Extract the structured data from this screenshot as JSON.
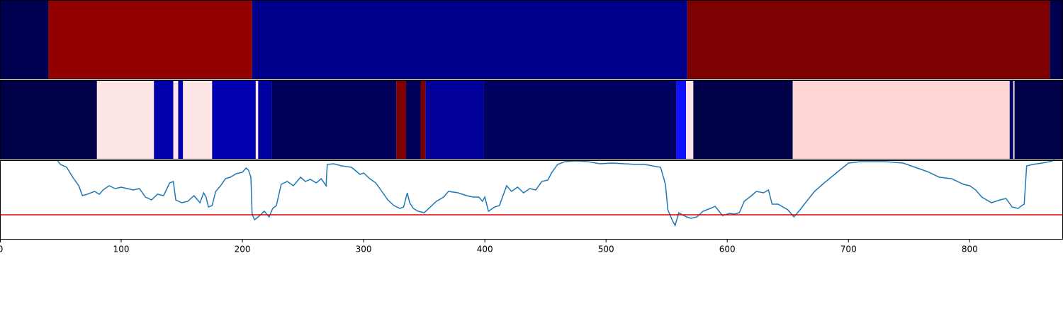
{
  "chart_data": [
    {
      "type": "segments",
      "xlim": [
        0,
        877
      ],
      "segments": [
        {
          "start": 0,
          "end": 40,
          "color": "#000050"
        },
        {
          "start": 40,
          "end": 208,
          "color": "#930000"
        },
        {
          "start": 208,
          "end": 567,
          "color": "#00008a"
        },
        {
          "start": 567,
          "end": 866,
          "color": "#7f0000"
        },
        {
          "start": 866,
          "end": 877,
          "color": "#000050"
        }
      ]
    },
    {
      "type": "segments",
      "xlim": [
        0,
        877
      ],
      "segments": [
        {
          "start": 0,
          "end": 80,
          "color": "#000048"
        },
        {
          "start": 80,
          "end": 127,
          "color": "#ffe6e6"
        },
        {
          "start": 127,
          "end": 143,
          "color": "#0000aa"
        },
        {
          "start": 143,
          "end": 147,
          "color": "#ffe6e6"
        },
        {
          "start": 147,
          "end": 151,
          "color": "#0000aa"
        },
        {
          "start": 151,
          "end": 175,
          "color": "#ffe6e6"
        },
        {
          "start": 175,
          "end": 211,
          "color": "#0000b0"
        },
        {
          "start": 211,
          "end": 213,
          "color": "#ffe6e6"
        },
        {
          "start": 213,
          "end": 224,
          "color": "#0000a0"
        },
        {
          "start": 224,
          "end": 327,
          "color": "#00005a"
        },
        {
          "start": 327,
          "end": 335,
          "color": "#800000"
        },
        {
          "start": 335,
          "end": 347,
          "color": "#00005a"
        },
        {
          "start": 347,
          "end": 351,
          "color": "#800000"
        },
        {
          "start": 351,
          "end": 399,
          "color": "#000098"
        },
        {
          "start": 399,
          "end": 558,
          "color": "#000060"
        },
        {
          "start": 558,
          "end": 566,
          "color": "#1010ff"
        },
        {
          "start": 566,
          "end": 572,
          "color": "#ffe6e6"
        },
        {
          "start": 572,
          "end": 654,
          "color": "#000048"
        },
        {
          "start": 654,
          "end": 833,
          "color": "#ffd4d4"
        },
        {
          "start": 833,
          "end": 836,
          "color": "#000060"
        },
        {
          "start": 836,
          "end": 837,
          "color": "#ffe6e6"
        },
        {
          "start": 837,
          "end": 877,
          "color": "#000048"
        }
      ]
    },
    {
      "type": "line",
      "xlim": [
        0,
        877
      ],
      "ylim": [
        0,
        112
      ],
      "xticks": [
        0,
        100,
        200,
        300,
        400,
        500,
        600,
        700,
        800
      ],
      "color": "#1f77b4",
      "hline": {
        "value": 35,
        "color": "#e00000"
      },
      "x": [
        47,
        50,
        55,
        60,
        65,
        68,
        72,
        78,
        82,
        85,
        90,
        95,
        100,
        105,
        110,
        115,
        120,
        125,
        130,
        135,
        140,
        143,
        145,
        150,
        155,
        160,
        165,
        168,
        170,
        172,
        175,
        178,
        182,
        186,
        190,
        195,
        200,
        203,
        205,
        207,
        208,
        210,
        213,
        218,
        222,
        225,
        228,
        232,
        237,
        242,
        248,
        252,
        256,
        261,
        265,
        269,
        270,
        275,
        282,
        290,
        297,
        300,
        305,
        310,
        315,
        320,
        325,
        330,
        333,
        336,
        338,
        341,
        345,
        350,
        355,
        360,
        366,
        370,
        378,
        385,
        390,
        395,
        398,
        400,
        403,
        408,
        412,
        415,
        418,
        422,
        427,
        432,
        437,
        442,
        447,
        452,
        455,
        460,
        466,
        475,
        485,
        495,
        505,
        515,
        525,
        532,
        545,
        549,
        551,
        555,
        557,
        560,
        565,
        570,
        575,
        580,
        586,
        590,
        596,
        602,
        606,
        610,
        614,
        620,
        624,
        630,
        634,
        637,
        642,
        646,
        650,
        655,
        660,
        665,
        672,
        680,
        690,
        700,
        710,
        720,
        730,
        745,
        755,
        765,
        775,
        785,
        795,
        800,
        805,
        810,
        818,
        825,
        830,
        835,
        840,
        843,
        845,
        847,
        852,
        860,
        866,
        870
      ],
      "values": [
        112,
        106,
        102,
        88,
        76,
        62,
        64,
        68,
        64,
        70,
        76,
        72,
        74,
        72,
        70,
        72,
        60,
        56,
        64,
        62,
        80,
        82,
        56,
        52,
        54,
        62,
        52,
        66,
        60,
        46,
        48,
        68,
        76,
        86,
        88,
        93,
        95,
        101,
        98,
        88,
        36,
        28,
        32,
        40,
        32,
        44,
        48,
        78,
        82,
        76,
        88,
        82,
        85,
        80,
        86,
        76,
        106,
        107,
        104,
        102,
        92,
        94,
        86,
        80,
        68,
        56,
        48,
        44,
        46,
        66,
        52,
        44,
        40,
        38,
        46,
        54,
        60,
        68,
        66,
        62,
        60,
        60,
        54,
        60,
        40,
        46,
        48,
        62,
        76,
        68,
        74,
        66,
        72,
        70,
        82,
        84,
        94,
        106,
        110,
        111,
        110,
        107,
        108,
        107,
        106,
        106,
        102,
        78,
        42,
        26,
        20,
        38,
        33,
        30,
        32,
        40,
        44,
        47,
        34,
        37,
        36,
        38,
        54,
        62,
        68,
        66,
        70,
        50,
        50,
        46,
        42,
        32,
        42,
        53,
        68,
        80,
        94,
        108,
        110,
        110,
        110,
        108,
        102,
        96,
        88,
        86,
        78,
        76,
        70,
        60,
        52,
        56,
        58,
        46,
        44,
        48,
        50,
        104,
        106,
        108,
        110,
        112
      ]
    }
  ]
}
